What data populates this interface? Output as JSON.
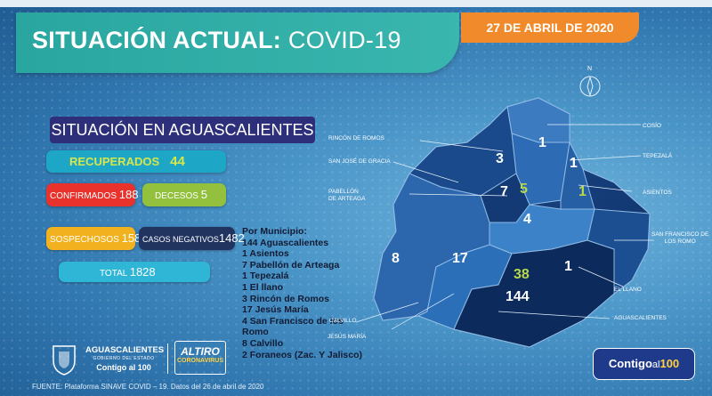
{
  "header": {
    "title_bold": "SITUACIÓN ACTUAL:",
    "title_thin": "COVID-19",
    "date": "27 DE ABRIL DE 2020"
  },
  "region_title": "SITUACIÓN EN AGUASCALIENTES",
  "stats": {
    "recuperados_label": "RECUPERADOS",
    "recuperados": "44",
    "confirmados_label": "CONFIRMADOS",
    "confirmados": "188",
    "decesos_label": "DECESOS",
    "decesos": "5",
    "sospechosos_label": "SOSPECHOSOS",
    "sospechosos": "158",
    "negativos_label": "CASOS NEGATIVOS",
    "negativos": "1482",
    "total_label": "TOTAL",
    "total": "1828"
  },
  "municipios": {
    "heading": "Por Municipio:",
    "items": [
      "144 Aguascalientes",
      "1    Asientos",
      "7    Pabellón de Arteaga",
      "1    Tepezalá",
      "1    El llano",
      "3    Rincón de Romos",
      "17  Jesús María",
      "4    San Francisco de los",
      "Romo",
      "8    Calvillo",
      "2  Foraneos (Zac. Y Jalisco)"
    ]
  },
  "map": {
    "numbers": {
      "cosio": "1",
      "tepezala": "1",
      "rincon": "3",
      "pabellon": "7",
      "pabellon_g": "5",
      "asientos_g": "1",
      "sanfrancisco": "4",
      "calvillo": "8",
      "jesusmaria": "17",
      "ags_g": "38",
      "ags": "144",
      "llano": "1"
    },
    "labels": {
      "cosio": "COSÍO",
      "tepezala": "TEPEZALÁ",
      "asientos": "ASIENTOS",
      "rincon": "RINCÓN DE ROMOS",
      "sanjose": "SAN JOSÉ DE GRACIA",
      "pabellon1": "PABELLÓN",
      "pabellon2": "DE ARTEAGA",
      "sanfrancisco1": "SAN FRANCISCO DE",
      "sanfrancisco2": "LOS ROMO",
      "llano": "EL LLANO",
      "ags": "AGUASCALIENTES",
      "calvillo": "CALVILLO",
      "jesusmaria": "JESÚS MARÍA"
    },
    "compass": "N"
  },
  "logos": {
    "state": "AGUASCALIENTES",
    "state_sub": "GOBIERNO DEL ESTADO",
    "state_slogan": "Contigo al 100",
    "altiro": "ALTIRO",
    "altiro_sub": "CORONAVIRUS"
  },
  "footer": "FUENTE: Plataforma SINAVE COVID – 19. Datos del 26 de abril de 2020",
  "contigo": {
    "a": "Contigo",
    "b": "al",
    "c": "100"
  }
}
